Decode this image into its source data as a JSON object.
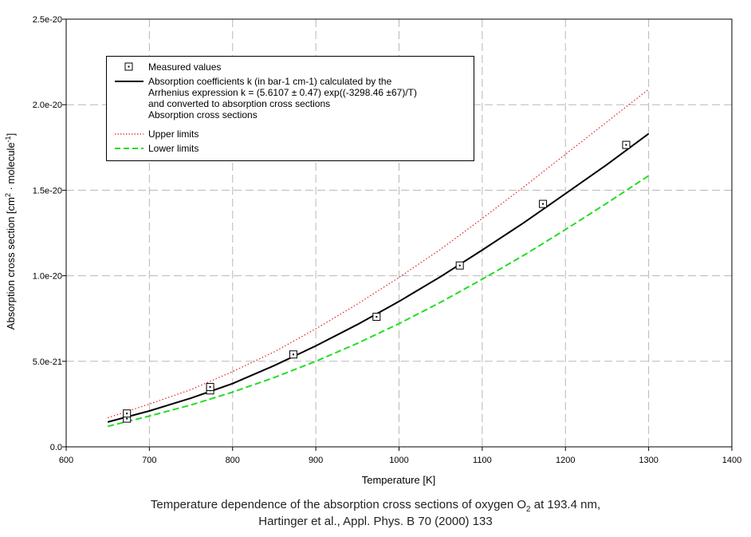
{
  "chart_data": {
    "type": "line",
    "xlabel": "Temperature [K]",
    "ylabel_main": "Absorption cross section [cm",
    "ylabel_sup1": "2",
    "ylabel_mid": " · molecule",
    "ylabel_sup2": "-1",
    "ylabel_end": "]",
    "xlim": [
      600,
      1400
    ],
    "ylim": [
      0,
      2.5e-20
    ],
    "x_ticks": [
      600,
      700,
      800,
      900,
      1000,
      1100,
      1200,
      1300,
      1400
    ],
    "x_tick_labels": [
      "600",
      "700",
      "800",
      "900",
      "1000",
      "1100",
      "1200",
      "1300",
      "1400"
    ],
    "y_ticks": [
      0,
      5e-21,
      1e-20,
      1.5e-20,
      2e-20,
      2.5e-20
    ],
    "y_tick_labels": [
      "0.0",
      "5.0e-21",
      "1.0e-20",
      "1.5e-20",
      "2.0e-20",
      "2.5e-20"
    ],
    "grid": true,
    "legend_position": "top-left",
    "series": [
      {
        "name": "Measured values",
        "kind": "markers",
        "color": "#000000",
        "x": [
          673,
          673,
          773,
          773,
          873,
          973,
          1073,
          1173,
          1273
        ],
        "y": [
          1.65e-21,
          1.95e-21,
          3.3e-21,
          3.5e-21,
          5.4e-21,
          7.6e-21,
          1.06e-20,
          1.42e-20,
          1.765e-20
        ]
      },
      {
        "name_lines": [
          "Absorption coefficients k (in bar-1 cm-1) calculated by the",
          "Arrhenius expression k = (5.6107 ± 0.47) exp((-3298.46 ±67)/T)",
          "and converted to absorption cross sections",
          "Absorption cross sections"
        ],
        "kind": "line",
        "style": "solid",
        "color": "#000000",
        "x": [
          650,
          700,
          750,
          800,
          850,
          900,
          950,
          1000,
          1050,
          1100,
          1150,
          1200,
          1250,
          1300
        ],
        "y": [
          1.45e-21,
          2.1e-21,
          2.85e-21,
          3.7e-21,
          4.75e-21,
          5.9e-21,
          7.15e-21,
          8.5e-21,
          9.95e-21,
          1.15e-20,
          1.31e-20,
          1.48e-20,
          1.65e-20,
          1.83e-20
        ]
      },
      {
        "name": "Upper limits",
        "kind": "line",
        "style": "dotted",
        "color": "#e02020",
        "x": [
          650,
          700,
          750,
          800,
          850,
          900,
          950,
          1000,
          1050,
          1100,
          1150,
          1200,
          1250,
          1300
        ],
        "y": [
          1.7e-21,
          2.5e-21,
          3.35e-21,
          4.4e-21,
          5.55e-21,
          6.9e-21,
          8.35e-21,
          9.9e-21,
          1.155e-20,
          1.335e-20,
          1.52e-20,
          1.71e-20,
          1.9e-20,
          2.09e-20
        ]
      },
      {
        "name": "Lower limits",
        "kind": "line",
        "style": "dashed",
        "color": "#22dd22",
        "x": [
          650,
          700,
          750,
          800,
          850,
          900,
          950,
          1000,
          1050,
          1100,
          1150,
          1200,
          1250,
          1300
        ],
        "y": [
          1.2e-21,
          1.8e-21,
          2.45e-21,
          3.2e-21,
          4.05e-21,
          5e-21,
          6.05e-21,
          7.2e-21,
          8.45e-21,
          9.8e-21,
          1.12e-20,
          1.27e-20,
          1.425e-20,
          1.585e-20
        ]
      }
    ]
  },
  "caption": {
    "line1_pre": "Temperature dependence of the absorption cross sections of oxygen O",
    "line1_sub": "2",
    "line1_post": " at 193.4 nm,",
    "line2": "Hartinger et al., Appl. Phys. B 70 (2000) 133"
  }
}
